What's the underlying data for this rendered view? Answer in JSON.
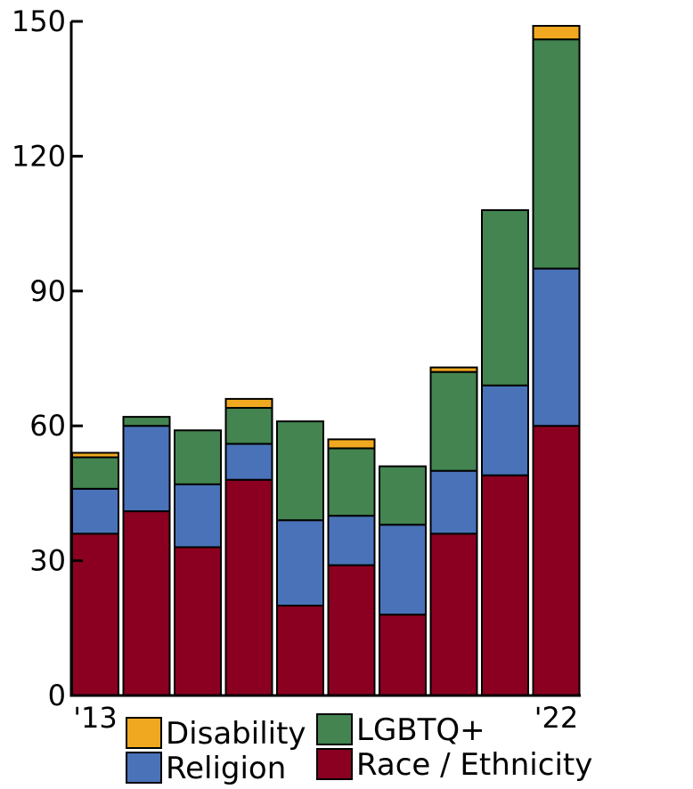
{
  "chart_data": {
    "type": "bar",
    "stacked": true,
    "categories": [
      "'13",
      "",
      "",
      "",
      "",
      "",
      "",
      "",
      "",
      "'22"
    ],
    "series": [
      {
        "name": "Race / Ethnicity",
        "color": "#8b0020",
        "values": [
          36,
          41,
          33,
          48,
          20,
          29,
          18,
          36,
          49,
          60
        ]
      },
      {
        "name": "Religion",
        "color": "#4a72b8",
        "values": [
          10,
          19,
          14,
          8,
          19,
          11,
          20,
          14,
          20,
          35
        ]
      },
      {
        "name": "LGBTQ+",
        "color": "#438450",
        "values": [
          7,
          2,
          12,
          8,
          22,
          15,
          13,
          22,
          39,
          51
        ]
      },
      {
        "name": "Disability",
        "color": "#f0a820",
        "values": [
          1,
          0,
          0,
          2,
          0,
          2,
          0,
          1,
          0,
          3
        ]
      }
    ],
    "yticks": [
      0,
      30,
      60,
      90,
      120,
      150
    ],
    "ylim": [
      0,
      150
    ],
    "grid": false,
    "legend": {
      "position": "bottom",
      "order": [
        "Disability",
        "LGBTQ+",
        "Religion",
        "Race / Ethnicity"
      ]
    }
  }
}
